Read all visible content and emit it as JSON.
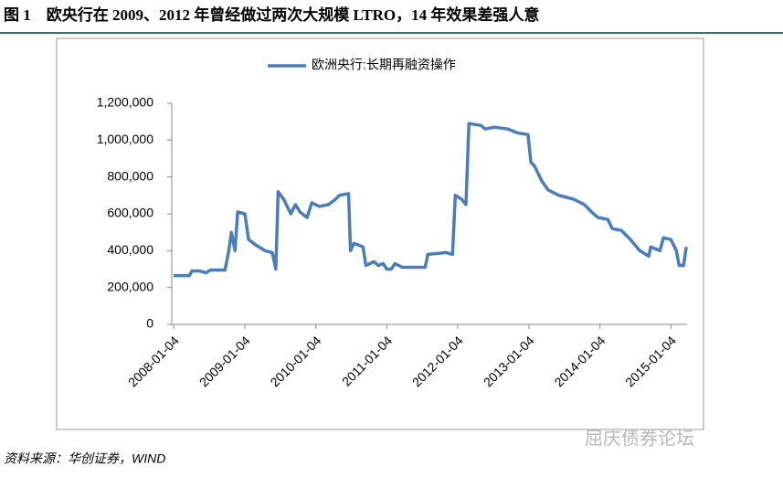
{
  "chart_data": {
    "type": "line",
    "title": "图 1　欧央行在 2009、2012 年曾经做过两次大规模 LTRO，14 年效果差强人意",
    "source": "资料来源：华创证券，WIND",
    "watermark": "屈庆债券论坛",
    "legend": "top",
    "x": [
      "2008-01-04",
      "2008-03-24",
      "2008-04-07",
      "2008-05-15",
      "2008-06-18",
      "2008-07-11",
      "2008-09-24",
      "2008-10-13",
      "2008-10-27",
      "2008-11-14",
      "2008-11-28",
      "2009-01-04",
      "2009-01-23",
      "2009-03-02",
      "2009-04-17",
      "2009-05-25",
      "2009-06-12",
      "2009-06-24",
      "2009-07-22",
      "2009-08-28",
      "2009-09-21",
      "2009-10-14",
      "2009-11-20",
      "2009-12-14",
      "2010-01-22",
      "2010-03-10",
      "2010-04-16",
      "2010-05-05",
      "2010-06-21",
      "2010-07-01",
      "2010-07-19",
      "2010-09-04",
      "2010-09-18",
      "2010-10-30",
      "2010-11-22",
      "2010-12-16",
      "2011-01-04",
      "2011-01-27",
      "2011-02-15",
      "2011-03-24",
      "2011-07-20",
      "2011-08-03",
      "2011-11-05",
      "2011-12-08",
      "2011-12-22",
      "2012-01-23",
      "2012-02-15",
      "2012-03-01",
      "2012-05-01",
      "2012-05-24",
      "2012-07-10",
      "2012-09-18",
      "2012-11-04",
      "2012-12-30",
      "2013-01-14",
      "2013-02-01",
      "2013-03-10",
      "2013-04-12",
      "2013-06-07",
      "2013-08-21",
      "2013-10-16",
      "2013-11-22",
      "2013-12-24",
      "2014-02-13",
      "2014-03-08",
      "2014-04-24",
      "2014-06-10",
      "2014-07-27",
      "2014-09-12",
      "2014-09-22",
      "2014-11-08",
      "2014-11-27",
      "2015-01-04",
      "2015-02-01",
      "2015-02-15",
      "2015-03-10",
      "2015-03-24"
    ],
    "series": [
      {
        "name": "欧洲央行:长期再融资操作",
        "color": "#4a7ebb",
        "values": [
          265000,
          265000,
          290000,
          290000,
          280000,
          295000,
          295000,
          400000,
          500000,
          400000,
          610000,
          600000,
          460000,
          430000,
          400000,
          390000,
          300000,
          720000,
          680000,
          600000,
          650000,
          610000,
          580000,
          660000,
          640000,
          650000,
          680000,
          700000,
          710000,
          400000,
          440000,
          420000,
          320000,
          340000,
          320000,
          330000,
          300000,
          300000,
          330000,
          310000,
          310000,
          380000,
          390000,
          380000,
          700000,
          680000,
          650000,
          1090000,
          1080000,
          1060000,
          1070000,
          1060000,
          1040000,
          1030000,
          880000,
          860000,
          780000,
          730000,
          700000,
          680000,
          650000,
          610000,
          580000,
          570000,
          520000,
          510000,
          460000,
          400000,
          370000,
          420000,
          400000,
          470000,
          460000,
          400000,
          320000,
          320000,
          420000
        ]
      }
    ],
    "xlim": [
      "2007-12-25",
      "2015-03-28"
    ],
    "xticks": [
      "2008-01-04",
      "2009-01-04",
      "2010-01-04",
      "2011-01-04",
      "2012-01-04",
      "2013-01-04",
      "2014-01-04",
      "2015-01-04"
    ],
    "ylim": [
      0,
      1200000
    ],
    "yticks": [
      0,
      {
        "value": 200000,
        "label": "200,000"
      },
      {
        "value": 400000,
        "label": "400,000"
      },
      {
        "value": 600000,
        "label": "600,000"
      },
      {
        "value": 800000,
        "label": "800,000"
      },
      {
        "value": 1000000,
        "label": "1,000,000"
      },
      {
        "value": 1200000,
        "label": "1,200,000"
      }
    ],
    "grid": false
  }
}
